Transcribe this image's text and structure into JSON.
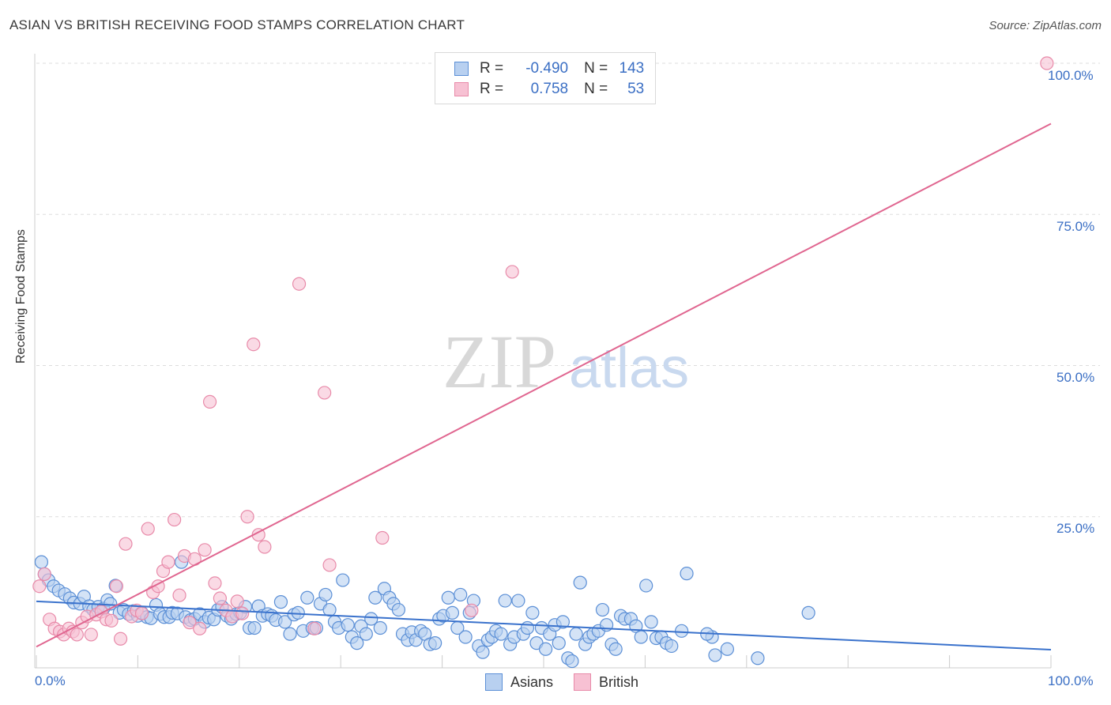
{
  "header": {
    "title": "ASIAN VS BRITISH RECEIVING FOOD STAMPS CORRELATION CHART",
    "source": "Source: ZipAtlas.com"
  },
  "watermark": {
    "zip": "ZIP",
    "atlas": "atlas"
  },
  "legend_top": {
    "rows": [
      {
        "r_label": "R =",
        "r_value": "-0.490",
        "n_label": "N =",
        "n_value": "143"
      },
      {
        "r_label": "R =",
        "r_value": "0.758",
        "n_label": "N =",
        "n_value": "53"
      }
    ]
  },
  "legend_bottom": {
    "asians": "Asians",
    "british": "British"
  },
  "axes": {
    "ylabel": "Receiving Food Stamps",
    "x_tick_left": "0.0%",
    "x_tick_right": "100.0%",
    "y_ticks": [
      "100.0%",
      "75.0%",
      "50.0%",
      "25.0%"
    ]
  },
  "colors": {
    "asian_fill": "#b8d0f0",
    "asian_stroke": "#5b8fd6",
    "asian_line": "#3a72cc",
    "british_fill": "#f7c1d3",
    "british_stroke": "#e88aa9",
    "british_line": "#e06690",
    "tick_text": "#3b6fc4",
    "grid": "#dddddd"
  },
  "chart_data": {
    "type": "scatter",
    "title": "ASIAN VS BRITISH RECEIVING FOOD STAMPS CORRELATION CHART",
    "xlabel": "",
    "ylabel": "Receiving Food Stamps",
    "xlim": [
      0,
      100
    ],
    "ylim": [
      0,
      100
    ],
    "grid": true,
    "legend_position": "top-center",
    "series": [
      {
        "name": "Asians",
        "trend": {
          "x": [
            0,
            100
          ],
          "y": [
            11.0,
            3.0
          ]
        },
        "points": [
          [
            0.5,
            17.5
          ],
          [
            0.8,
            15.5
          ],
          [
            1.2,
            14.5
          ],
          [
            1.7,
            13.5
          ],
          [
            2.2,
            12.8
          ],
          [
            2.8,
            12.2
          ],
          [
            3.3,
            11.5
          ],
          [
            3.7,
            10.8
          ],
          [
            4.3,
            10.6
          ],
          [
            4.7,
            11.8
          ],
          [
            5.2,
            10.2
          ],
          [
            5.6,
            9.6
          ],
          [
            6.1,
            10.1
          ],
          [
            6.6,
            9.8
          ],
          [
            7.0,
            11.2
          ],
          [
            7.3,
            10.6
          ],
          [
            7.8,
            13.6
          ],
          [
            8.2,
            9.1
          ],
          [
            8.6,
            9.6
          ],
          [
            9.1,
            8.9
          ],
          [
            9.6,
            9.4
          ],
          [
            10.0,
            8.6
          ],
          [
            10.4,
            9.1
          ],
          [
            10.9,
            8.4
          ],
          [
            11.3,
            8.2
          ],
          [
            11.8,
            10.4
          ],
          [
            12.2,
            8.9
          ],
          [
            12.6,
            8.4
          ],
          [
            13.1,
            8.4
          ],
          [
            13.4,
            9.1
          ],
          [
            13.9,
            9.0
          ],
          [
            14.3,
            17.5
          ],
          [
            14.7,
            8.4
          ],
          [
            15.2,
            7.9
          ],
          [
            15.6,
            8.1
          ],
          [
            16.1,
            8.9
          ],
          [
            16.6,
            7.6
          ],
          [
            17.0,
            8.3
          ],
          [
            17.5,
            8.0
          ],
          [
            17.9,
            9.6
          ],
          [
            18.3,
            10.1
          ],
          [
            18.8,
            8.6
          ],
          [
            19.2,
            8.1
          ],
          [
            19.7,
            8.9
          ],
          [
            20.1,
            9.1
          ],
          [
            20.6,
            10.1
          ],
          [
            21.0,
            6.6
          ],
          [
            21.5,
            6.6
          ],
          [
            21.9,
            10.2
          ],
          [
            22.3,
            8.6
          ],
          [
            22.8,
            8.9
          ],
          [
            23.2,
            8.6
          ],
          [
            23.6,
            7.9
          ],
          [
            24.1,
            10.9
          ],
          [
            24.5,
            7.6
          ],
          [
            25.0,
            5.6
          ],
          [
            25.4,
            8.8
          ],
          [
            25.8,
            9.1
          ],
          [
            26.3,
            6.1
          ],
          [
            26.7,
            11.6
          ],
          [
            27.2,
            6.6
          ],
          [
            27.6,
            6.6
          ],
          [
            28.0,
            10.6
          ],
          [
            28.5,
            12.1
          ],
          [
            28.9,
            9.6
          ],
          [
            29.4,
            7.6
          ],
          [
            29.8,
            6.6
          ],
          [
            30.2,
            14.5
          ],
          [
            30.7,
            7.1
          ],
          [
            31.1,
            5.1
          ],
          [
            31.6,
            4.1
          ],
          [
            32.0,
            6.9
          ],
          [
            32.5,
            5.6
          ],
          [
            33.0,
            8.1
          ],
          [
            33.4,
            11.6
          ],
          [
            33.9,
            6.6
          ],
          [
            34.3,
            13.1
          ],
          [
            34.8,
            11.6
          ],
          [
            35.2,
            10.6
          ],
          [
            35.7,
            9.6
          ],
          [
            36.1,
            5.6
          ],
          [
            36.6,
            4.6
          ],
          [
            37.0,
            5.9
          ],
          [
            37.4,
            4.6
          ],
          [
            37.9,
            6.1
          ],
          [
            38.3,
            5.6
          ],
          [
            38.8,
            3.9
          ],
          [
            39.3,
            4.1
          ],
          [
            39.7,
            8.1
          ],
          [
            40.1,
            8.6
          ],
          [
            40.6,
            11.6
          ],
          [
            41.0,
            9.1
          ],
          [
            41.5,
            6.6
          ],
          [
            41.8,
            12.1
          ],
          [
            42.3,
            5.1
          ],
          [
            42.7,
            9.1
          ],
          [
            43.1,
            11.1
          ],
          [
            43.6,
            3.6
          ],
          [
            44.0,
            2.6
          ],
          [
            44.5,
            4.6
          ],
          [
            44.9,
            5.1
          ],
          [
            45.3,
            6.1
          ],
          [
            45.8,
            5.6
          ],
          [
            46.2,
            11.1
          ],
          [
            46.7,
            3.9
          ],
          [
            47.1,
            5.1
          ],
          [
            47.5,
            11.1
          ],
          [
            48.0,
            5.6
          ],
          [
            48.4,
            6.6
          ],
          [
            48.9,
            9.1
          ],
          [
            49.3,
            4.1
          ],
          [
            49.8,
            6.6
          ],
          [
            50.2,
            3.1
          ],
          [
            50.6,
            5.6
          ],
          [
            51.1,
            7.1
          ],
          [
            51.5,
            4.1
          ],
          [
            51.9,
            7.6
          ],
          [
            52.4,
            1.6
          ],
          [
            52.8,
            1.1
          ],
          [
            53.2,
            5.6
          ],
          [
            53.6,
            14.1
          ],
          [
            54.1,
            3.9
          ],
          [
            54.5,
            5.1
          ],
          [
            54.9,
            5.6
          ],
          [
            55.4,
            6.1
          ],
          [
            55.8,
            9.6
          ],
          [
            56.2,
            7.1
          ],
          [
            56.7,
            3.9
          ],
          [
            57.1,
            3.1
          ],
          [
            57.6,
            8.6
          ],
          [
            58.0,
            8.1
          ],
          [
            58.6,
            8.1
          ],
          [
            59.1,
            6.9
          ],
          [
            59.6,
            5.1
          ],
          [
            60.1,
            13.6
          ],
          [
            60.6,
            7.6
          ],
          [
            61.1,
            4.9
          ],
          [
            61.6,
            5.1
          ],
          [
            62.1,
            4.1
          ],
          [
            62.6,
            3.6
          ],
          [
            63.6,
            6.1
          ],
          [
            64.1,
            15.6
          ],
          [
            66.6,
            5.1
          ],
          [
            66.1,
            5.6
          ],
          [
            66.9,
            2.1
          ],
          [
            68.1,
            3.1
          ],
          [
            71.1,
            1.6
          ],
          [
            76.1,
            9.1
          ]
        ]
      },
      {
        "name": "British",
        "trend": {
          "x": [
            0,
            100
          ],
          "y": [
            3.5,
            90
          ]
        },
        "points": [
          [
            0.3,
            13.5
          ],
          [
            0.8,
            15.5
          ],
          [
            1.3,
            8.0
          ],
          [
            1.8,
            6.5
          ],
          [
            2.3,
            6.0
          ],
          [
            2.7,
            5.5
          ],
          [
            3.2,
            6.5
          ],
          [
            3.6,
            6.0
          ],
          [
            4.0,
            5.5
          ],
          [
            4.5,
            7.5
          ],
          [
            5.0,
            8.5
          ],
          [
            5.4,
            5.5
          ],
          [
            5.9,
            8.8
          ],
          [
            6.4,
            9.3
          ],
          [
            6.9,
            8.0
          ],
          [
            7.4,
            7.8
          ],
          [
            7.9,
            13.5
          ],
          [
            8.3,
            4.8
          ],
          [
            8.8,
            20.5
          ],
          [
            9.4,
            8.5
          ],
          [
            9.9,
            9.5
          ],
          [
            10.4,
            9.0
          ],
          [
            11.0,
            23.0
          ],
          [
            11.5,
            12.5
          ],
          [
            12.0,
            13.5
          ],
          [
            12.5,
            16.0
          ],
          [
            13.0,
            17.5
          ],
          [
            13.6,
            24.5
          ],
          [
            14.1,
            12.0
          ],
          [
            14.6,
            18.5
          ],
          [
            15.1,
            7.5
          ],
          [
            15.6,
            18.0
          ],
          [
            16.1,
            6.5
          ],
          [
            16.6,
            19.5
          ],
          [
            17.1,
            44.0
          ],
          [
            17.6,
            14.0
          ],
          [
            18.1,
            11.5
          ],
          [
            18.7,
            9.5
          ],
          [
            19.3,
            8.5
          ],
          [
            19.8,
            11.0
          ],
          [
            20.3,
            9.0
          ],
          [
            20.8,
            25.0
          ],
          [
            21.4,
            53.5
          ],
          [
            21.9,
            22.0
          ],
          [
            22.5,
            20.0
          ],
          [
            25.9,
            63.5
          ],
          [
            27.4,
            6.5
          ],
          [
            28.4,
            45.5
          ],
          [
            28.9,
            17.0
          ],
          [
            34.1,
            21.5
          ],
          [
            42.9,
            9.5
          ],
          [
            46.9,
            65.5
          ],
          [
            99.6,
            100.0
          ]
        ]
      }
    ]
  }
}
